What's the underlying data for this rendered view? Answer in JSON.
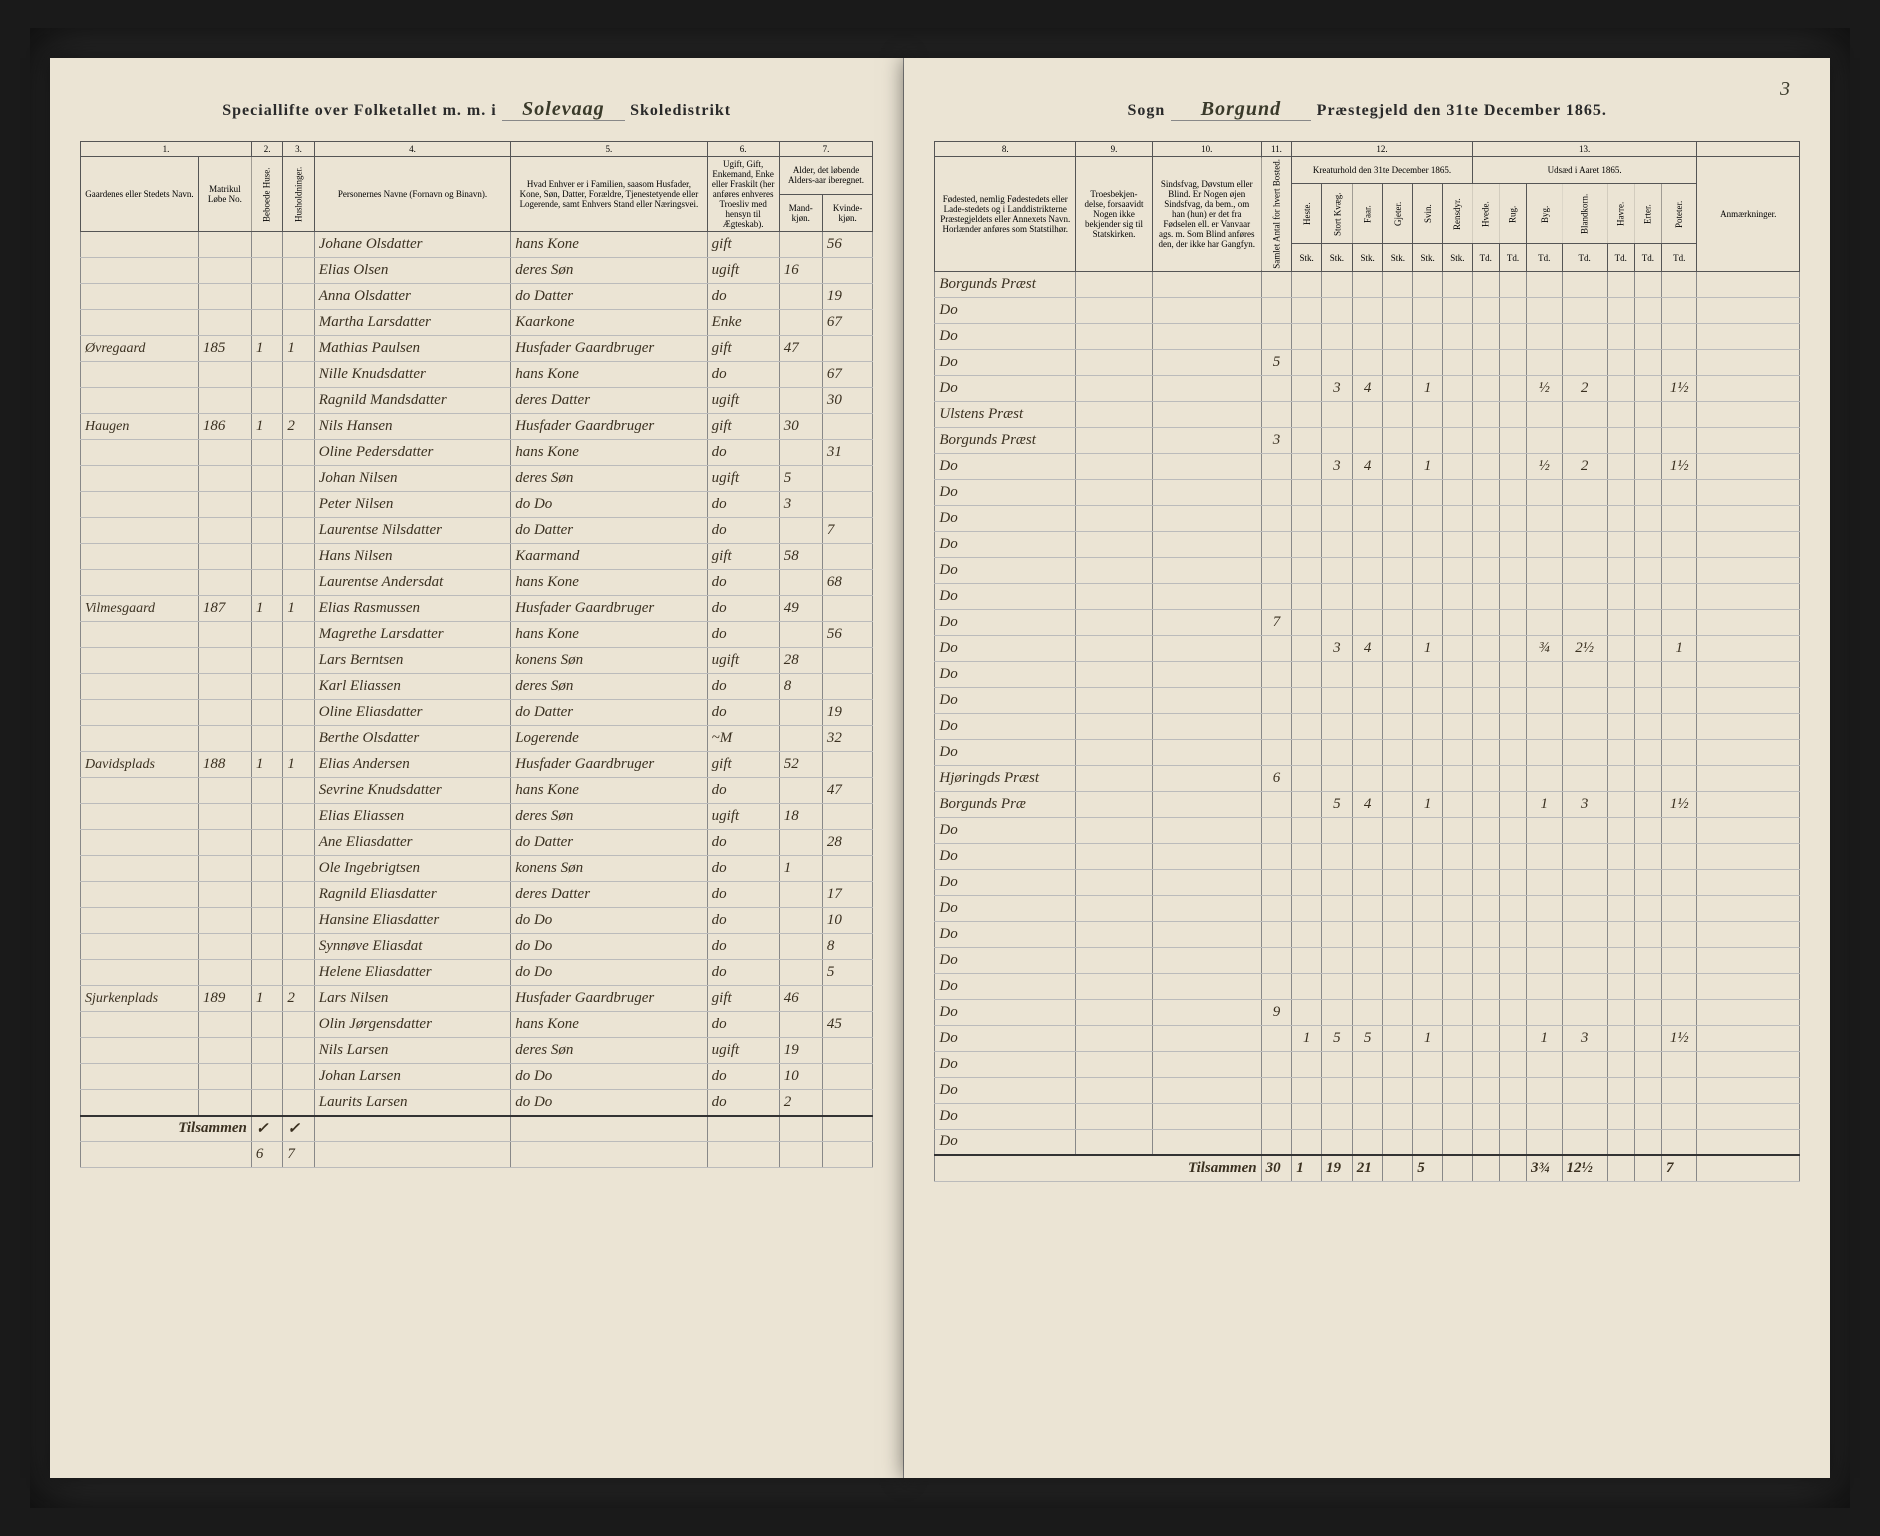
{
  "page_number": "3",
  "header_left": {
    "prefix": "Speciallifte over Folketallet m. m. i",
    "district_handwritten": "Solevaag",
    "suffix": "Skoledistrikt"
  },
  "header_right": {
    "sogn_label": "Sogn",
    "sogn_handwritten": "Borgund",
    "prestegjeld_label": "Præstegjeld den 31te December 1865."
  },
  "column_numbers_left": [
    "1.",
    "2.",
    "3.",
    "4.",
    "5.",
    "6.",
    "7."
  ],
  "column_numbers_right": [
    "8.",
    "9.",
    "10.",
    "11.",
    "12.",
    "13."
  ],
  "col_headers_left": {
    "c1": "Gaardenes eller Stedets Navn.",
    "c1b": "Matrikul Løbe No.",
    "c2": "Beboede Huse.",
    "c3": "Husholdninger.",
    "c4": "Personernes Navne (Fornavn og Binavn).",
    "c5": "Hvad Enhver er i Familien, saasom Husfader, Kone, Søn, Datter, Forældre, Tjenestetyende eller Logerende, samt Enhvers Stand eller Næringsvei.",
    "c6": "Ugift, Gift, Enkemand, Enke eller Fraskilt (her anføres enhveres Troesliv med hensyn til Ægteskab).",
    "c7_title": "Alder, det løbende Alders-aar iberegnet.",
    "c7a": "Mand-kjøn.",
    "c7b": "Kvinde-kjøn."
  },
  "col_headers_right": {
    "c8": "Fødested, nemlig Fødestedets eller Lade-stedets og i Landdistrikterne Præstegjeldets eller Annexets Navn. Horlænder anføres som Statstilhør.",
    "c9": "Troesbekjen-delse, forsaavidt Nogen ikke bekjender sig til Statskirken.",
    "c10": "Sindsfvag, Døvstum eller Blind. Er Nogen øjen Sindsfvag, da bem., om han (hun) er det fra Fødselen ell. er Vanvaar ags. m. Som Blind anføres den, der ikke har Gangfyn.",
    "c11": "Samlet Antal for hvert Bosted.",
    "c12_title": "Kreaturhold den 31te December 1865.",
    "c12_sub": [
      "Heste.",
      "Stort Kvæg.",
      "Faar.",
      "Gjeter.",
      "Svin.",
      "Rensdyr."
    ],
    "c13_title": "Udsæd i Aaret 1865.",
    "c13_sub": [
      "Hvede.",
      "Rug.",
      "Byg.",
      "Blandkorn.",
      "Havre.",
      "Erter.",
      "Poteter."
    ],
    "c14": "Anmærkninger.",
    "unit": "Stk.",
    "unit2": "Td."
  },
  "rows": [
    {
      "gaard": "",
      "mn": "",
      "h": "",
      "hh": "",
      "navn": "Johane Olsdatter",
      "fam": "hans Kone",
      "stand": "gift",
      "m": "",
      "k": "56",
      "fod": "Borgunds Præst",
      "r9": "",
      "r10": "",
      "r11": "",
      "k12": [
        "",
        "",
        "",
        "",
        "",
        ""
      ],
      "k13": [
        "",
        "",
        "",
        "",
        "",
        "",
        ""
      ]
    },
    {
      "gaard": "",
      "mn": "",
      "h": "",
      "hh": "",
      "navn": "Elias Olsen",
      "fam": "deres Søn",
      "stand": "ugift",
      "m": "16",
      "k": "",
      "fod": "Do",
      "r9": "",
      "r10": "",
      "r11": "",
      "k12": [
        "",
        "",
        "",
        "",
        "",
        ""
      ],
      "k13": [
        "",
        "",
        "",
        "",
        "",
        "",
        ""
      ]
    },
    {
      "gaard": "",
      "mn": "",
      "h": "",
      "hh": "",
      "navn": "Anna Olsdatter",
      "fam": "do Datter",
      "stand": "do",
      "m": "",
      "k": "19",
      "fod": "Do",
      "r9": "",
      "r10": "",
      "r11": "",
      "k12": [
        "",
        "",
        "",
        "",
        "",
        ""
      ],
      "k13": [
        "",
        "",
        "",
        "",
        "",
        "",
        ""
      ]
    },
    {
      "gaard": "",
      "mn": "",
      "h": "",
      "hh": "",
      "navn": "Martha Larsdatter",
      "fam": "Kaarkone",
      "stand": "Enke",
      "m": "",
      "k": "67",
      "fod": "Do",
      "r9": "",
      "r10": "",
      "r11": "5",
      "k12": [
        "",
        "",
        "",
        "",
        "",
        ""
      ],
      "k13": [
        "",
        "",
        "",
        "",
        "",
        "",
        ""
      ]
    },
    {
      "gaard": "Øvregaard",
      "mn": "185",
      "h": "1",
      "hh": "1",
      "navn": "Mathias Paulsen",
      "fam": "Husfader Gaardbruger",
      "stand": "gift",
      "m": "47",
      "k": "",
      "fod": "Do",
      "r9": "",
      "r10": "",
      "r11": "",
      "k12": [
        "",
        "3",
        "4",
        "",
        "1",
        ""
      ],
      "k13": [
        "",
        "",
        "½",
        "2",
        "",
        "",
        "1½"
      ]
    },
    {
      "gaard": "",
      "mn": "",
      "h": "",
      "hh": "",
      "navn": "Nille Knudsdatter",
      "fam": "hans Kone",
      "stand": "do",
      "m": "",
      "k": "67",
      "fod": "Ulstens Præst",
      "r9": "",
      "r10": "",
      "r11": "",
      "k12": [
        "",
        "",
        "",
        "",
        "",
        ""
      ],
      "k13": [
        "",
        "",
        "",
        "",
        "",
        "",
        ""
      ]
    },
    {
      "gaard": "",
      "mn": "",
      "h": "",
      "hh": "",
      "navn": "Ragnild Mandsdatter",
      "fam": "deres Datter",
      "stand": "ugift",
      "m": "",
      "k": "30",
      "fod": "Borgunds Præst",
      "r9": "",
      "r10": "",
      "r11": "3",
      "k12": [
        "",
        "",
        "",
        "",
        "",
        ""
      ],
      "k13": [
        "",
        "",
        "",
        "",
        "",
        "",
        ""
      ]
    },
    {
      "gaard": "Haugen",
      "mn": "186",
      "h": "1",
      "hh": "2",
      "navn": "Nils Hansen",
      "fam": "Husfader Gaardbruger",
      "stand": "gift",
      "m": "30",
      "k": "",
      "fod": "Do",
      "r9": "",
      "r10": "",
      "r11": "",
      "k12": [
        "",
        "3",
        "4",
        "",
        "1",
        ""
      ],
      "k13": [
        "",
        "",
        "½",
        "2",
        "",
        "",
        "1½"
      ]
    },
    {
      "gaard": "",
      "mn": "",
      "h": "",
      "hh": "",
      "navn": "Oline Pedersdatter",
      "fam": "hans Kone",
      "stand": "do",
      "m": "",
      "k": "31",
      "fod": "Do",
      "r9": "",
      "r10": "",
      "r11": "",
      "k12": [
        "",
        "",
        "",
        "",
        "",
        ""
      ],
      "k13": [
        "",
        "",
        "",
        "",
        "",
        "",
        ""
      ]
    },
    {
      "gaard": "",
      "mn": "",
      "h": "",
      "hh": "",
      "navn": "Johan Nilsen",
      "fam": "deres Søn",
      "stand": "ugift",
      "m": "5",
      "k": "",
      "fod": "Do",
      "r9": "",
      "r10": "",
      "r11": "",
      "k12": [
        "",
        "",
        "",
        "",
        "",
        ""
      ],
      "k13": [
        "",
        "",
        "",
        "",
        "",
        "",
        ""
      ]
    },
    {
      "gaard": "",
      "mn": "",
      "h": "",
      "hh": "",
      "navn": "Peter Nilsen",
      "fam": "do Do",
      "stand": "do",
      "m": "3",
      "k": "",
      "fod": "Do",
      "r9": "",
      "r10": "",
      "r11": "",
      "k12": [
        "",
        "",
        "",
        "",
        "",
        ""
      ],
      "k13": [
        "",
        "",
        "",
        "",
        "",
        "",
        ""
      ]
    },
    {
      "gaard": "",
      "mn": "",
      "h": "",
      "hh": "",
      "navn": "Laurentse Nilsdatter",
      "fam": "do Datter",
      "stand": "do",
      "m": "",
      "k": "7",
      "fod": "Do",
      "r9": "",
      "r10": "",
      "r11": "",
      "k12": [
        "",
        "",
        "",
        "",
        "",
        ""
      ],
      "k13": [
        "",
        "",
        "",
        "",
        "",
        "",
        ""
      ]
    },
    {
      "gaard": "",
      "mn": "",
      "h": "",
      "hh": "",
      "navn": "Hans Nilsen",
      "fam": "Kaarmand",
      "stand": "gift",
      "m": "58",
      "k": "",
      "fod": "Do",
      "r9": "",
      "r10": "",
      "r11": "",
      "k12": [
        "",
        "",
        "",
        "",
        "",
        ""
      ],
      "k13": [
        "",
        "",
        "",
        "",
        "",
        "",
        ""
      ]
    },
    {
      "gaard": "",
      "mn": "",
      "h": "",
      "hh": "",
      "navn": "Laurentse Andersdat",
      "fam": "hans Kone",
      "stand": "do",
      "m": "",
      "k": "68",
      "fod": "Do",
      "r9": "",
      "r10": "",
      "r11": "7",
      "k12": [
        "",
        "",
        "",
        "",
        "",
        ""
      ],
      "k13": [
        "",
        "",
        "",
        "",
        "",
        "",
        ""
      ]
    },
    {
      "gaard": "Vilmesgaard",
      "mn": "187",
      "h": "1",
      "hh": "1",
      "navn": "Elias Rasmussen",
      "fam": "Husfader Gaardbruger",
      "stand": "do",
      "m": "49",
      "k": "",
      "fod": "Do",
      "r9": "",
      "r10": "",
      "r11": "",
      "k12": [
        "",
        "3",
        "4",
        "",
        "1",
        ""
      ],
      "k13": [
        "",
        "",
        "¾",
        "2½",
        "",
        "",
        "1"
      ]
    },
    {
      "gaard": "",
      "mn": "",
      "h": "",
      "hh": "",
      "navn": "Magrethe Larsdatter",
      "fam": "hans Kone",
      "stand": "do",
      "m": "",
      "k": "56",
      "fod": "Do",
      "r9": "",
      "r10": "",
      "r11": "",
      "k12": [
        "",
        "",
        "",
        "",
        "",
        ""
      ],
      "k13": [
        "",
        "",
        "",
        "",
        "",
        "",
        ""
      ]
    },
    {
      "gaard": "",
      "mn": "",
      "h": "",
      "hh": "",
      "navn": "Lars Berntsen",
      "fam": "konens Søn",
      "stand": "ugift",
      "m": "28",
      "k": "",
      "fod": "Do",
      "r9": "",
      "r10": "",
      "r11": "",
      "k12": [
        "",
        "",
        "",
        "",
        "",
        ""
      ],
      "k13": [
        "",
        "",
        "",
        "",
        "",
        "",
        ""
      ]
    },
    {
      "gaard": "",
      "mn": "",
      "h": "",
      "hh": "",
      "navn": "Karl Eliassen",
      "fam": "deres Søn",
      "stand": "do",
      "m": "8",
      "k": "",
      "fod": "Do",
      "r9": "",
      "r10": "",
      "r11": "",
      "k12": [
        "",
        "",
        "",
        "",
        "",
        ""
      ],
      "k13": [
        "",
        "",
        "",
        "",
        "",
        "",
        ""
      ]
    },
    {
      "gaard": "",
      "mn": "",
      "h": "",
      "hh": "",
      "navn": "Oline Eliasdatter",
      "fam": "do Datter",
      "stand": "do",
      "m": "",
      "k": "19",
      "fod": "Do",
      "r9": "",
      "r10": "",
      "r11": "",
      "k12": [
        "",
        "",
        "",
        "",
        "",
        ""
      ],
      "k13": [
        "",
        "",
        "",
        "",
        "",
        "",
        ""
      ]
    },
    {
      "gaard": "",
      "mn": "",
      "h": "",
      "hh": "",
      "navn": "Berthe Olsdatter",
      "fam": "Logerende",
      "stand": "~M",
      "m": "",
      "k": "32",
      "fod": "Hjøringds Præst",
      "r9": "",
      "r10": "",
      "r11": "6",
      "k12": [
        "",
        "",
        "",
        "",
        "",
        ""
      ],
      "k13": [
        "",
        "",
        "",
        "",
        "",
        "",
        ""
      ]
    },
    {
      "gaard": "Davidsplads",
      "mn": "188",
      "h": "1",
      "hh": "1",
      "navn": "Elias Andersen",
      "fam": "Husfader Gaardbruger",
      "stand": "gift",
      "m": "52",
      "k": "",
      "fod": "Borgunds Præ",
      "r9": "",
      "r10": "",
      "r11": "",
      "k12": [
        "",
        "5",
        "4",
        "",
        "1",
        ""
      ],
      "k13": [
        "",
        "",
        "1",
        "3",
        "",
        "",
        "1½"
      ]
    },
    {
      "gaard": "",
      "mn": "",
      "h": "",
      "hh": "",
      "navn": "Sevrine Knudsdatter",
      "fam": "hans Kone",
      "stand": "do",
      "m": "",
      "k": "47",
      "fod": "Do",
      "r9": "",
      "r10": "",
      "r11": "",
      "k12": [
        "",
        "",
        "",
        "",
        "",
        ""
      ],
      "k13": [
        "",
        "",
        "",
        "",
        "",
        "",
        ""
      ]
    },
    {
      "gaard": "",
      "mn": "",
      "h": "",
      "hh": "",
      "navn": "Elias Eliassen",
      "fam": "deres Søn",
      "stand": "ugift",
      "m": "18",
      "k": "",
      "fod": "Do",
      "r9": "",
      "r10": "",
      "r11": "",
      "k12": [
        "",
        "",
        "",
        "",
        "",
        ""
      ],
      "k13": [
        "",
        "",
        "",
        "",
        "",
        "",
        ""
      ]
    },
    {
      "gaard": "",
      "mn": "",
      "h": "",
      "hh": "",
      "navn": "Ane Eliasdatter",
      "fam": "do Datter",
      "stand": "do",
      "m": "",
      "k": "28",
      "fod": "Do",
      "r9": "",
      "r10": "",
      "r11": "",
      "k12": [
        "",
        "",
        "",
        "",
        "",
        ""
      ],
      "k13": [
        "",
        "",
        "",
        "",
        "",
        "",
        ""
      ]
    },
    {
      "gaard": "",
      "mn": "",
      "h": "",
      "hh": "",
      "navn": "Ole Ingebrigtsen",
      "fam": "konens Søn",
      "stand": "do",
      "m": "1",
      "k": "",
      "fod": "Do",
      "r9": "",
      "r10": "",
      "r11": "",
      "k12": [
        "",
        "",
        "",
        "",
        "",
        ""
      ],
      "k13": [
        "",
        "",
        "",
        "",
        "",
        "",
        ""
      ]
    },
    {
      "gaard": "",
      "mn": "",
      "h": "",
      "hh": "",
      "navn": "Ragnild Eliasdatter",
      "fam": "deres Datter",
      "stand": "do",
      "m": "",
      "k": "17",
      "fod": "Do",
      "r9": "",
      "r10": "",
      "r11": "",
      "k12": [
        "",
        "",
        "",
        "",
        "",
        ""
      ],
      "k13": [
        "",
        "",
        "",
        "",
        "",
        "",
        ""
      ]
    },
    {
      "gaard": "",
      "mn": "",
      "h": "",
      "hh": "",
      "navn": "Hansine Eliasdatter",
      "fam": "do Do",
      "stand": "do",
      "m": "",
      "k": "10",
      "fod": "Do",
      "r9": "",
      "r10": "",
      "r11": "",
      "k12": [
        "",
        "",
        "",
        "",
        "",
        ""
      ],
      "k13": [
        "",
        "",
        "",
        "",
        "",
        "",
        ""
      ]
    },
    {
      "gaard": "",
      "mn": "",
      "h": "",
      "hh": "",
      "navn": "Synnøve Eliasdat",
      "fam": "do Do",
      "stand": "do",
      "m": "",
      "k": "8",
      "fod": "Do",
      "r9": "",
      "r10": "",
      "r11": "",
      "k12": [
        "",
        "",
        "",
        "",
        "",
        ""
      ],
      "k13": [
        "",
        "",
        "",
        "",
        "",
        "",
        ""
      ]
    },
    {
      "gaard": "",
      "mn": "",
      "h": "",
      "hh": "",
      "navn": "Helene Eliasdatter",
      "fam": "do Do",
      "stand": "do",
      "m": "",
      "k": "5",
      "fod": "Do",
      "r9": "",
      "r10": "",
      "r11": "9",
      "k12": [
        "",
        "",
        "",
        "",
        "",
        ""
      ],
      "k13": [
        "",
        "",
        "",
        "",
        "",
        "",
        ""
      ]
    },
    {
      "gaard": "Sjurkenplads",
      "mn": "189",
      "h": "1",
      "hh": "2",
      "navn": "Lars Nilsen",
      "fam": "Husfader Gaardbruger",
      "stand": "gift",
      "m": "46",
      "k": "",
      "fod": "Do",
      "r9": "",
      "r10": "",
      "r11": "",
      "k12": [
        "1",
        "5",
        "5",
        "",
        "1",
        ""
      ],
      "k13": [
        "",
        "",
        "1",
        "3",
        "",
        "",
        "1½"
      ]
    },
    {
      "gaard": "",
      "mn": "",
      "h": "",
      "hh": "",
      "navn": "Olin Jørgensdatter",
      "fam": "hans Kone",
      "stand": "do",
      "m": "",
      "k": "45",
      "fod": "Do",
      "r9": "",
      "r10": "",
      "r11": "",
      "k12": [
        "",
        "",
        "",
        "",
        "",
        ""
      ],
      "k13": [
        "",
        "",
        "",
        "",
        "",
        "",
        ""
      ]
    },
    {
      "gaard": "",
      "mn": "",
      "h": "",
      "hh": "",
      "navn": "Nils Larsen",
      "fam": "deres Søn",
      "stand": "ugift",
      "m": "19",
      "k": "",
      "fod": "Do",
      "r9": "",
      "r10": "",
      "r11": "",
      "k12": [
        "",
        "",
        "",
        "",
        "",
        ""
      ],
      "k13": [
        "",
        "",
        "",
        "",
        "",
        "",
        ""
      ]
    },
    {
      "gaard": "",
      "mn": "",
      "h": "",
      "hh": "",
      "navn": "Johan Larsen",
      "fam": "do Do",
      "stand": "do",
      "m": "10",
      "k": "",
      "fod": "Do",
      "r9": "",
      "r10": "",
      "r11": "",
      "k12": [
        "",
        "",
        "",
        "",
        "",
        ""
      ],
      "k13": [
        "",
        "",
        "",
        "",
        "",
        "",
        ""
      ]
    },
    {
      "gaard": "",
      "mn": "",
      "h": "",
      "hh": "",
      "navn": "Laurits Larsen",
      "fam": "do Do",
      "stand": "do",
      "m": "2",
      "k": "",
      "fod": "Do",
      "r9": "",
      "r10": "",
      "r11": "",
      "k12": [
        "",
        "",
        "",
        "",
        "",
        ""
      ],
      "k13": [
        "",
        "",
        "",
        "",
        "",
        "",
        ""
      ]
    }
  ],
  "totals_label": "Tilsammen",
  "totals_left": {
    "h": "✓",
    "hh": "✓",
    "m": "",
    "k": ""
  },
  "totals_left2": {
    "h": "6",
    "hh": "7"
  },
  "totals_right": {
    "r11": "30",
    "k12": [
      "1",
      "19",
      "21",
      "",
      "5",
      ""
    ],
    "k13": [
      "",
      "",
      "3¾",
      "12½",
      "",
      "",
      "7"
    ]
  },
  "check_marks": "✓"
}
